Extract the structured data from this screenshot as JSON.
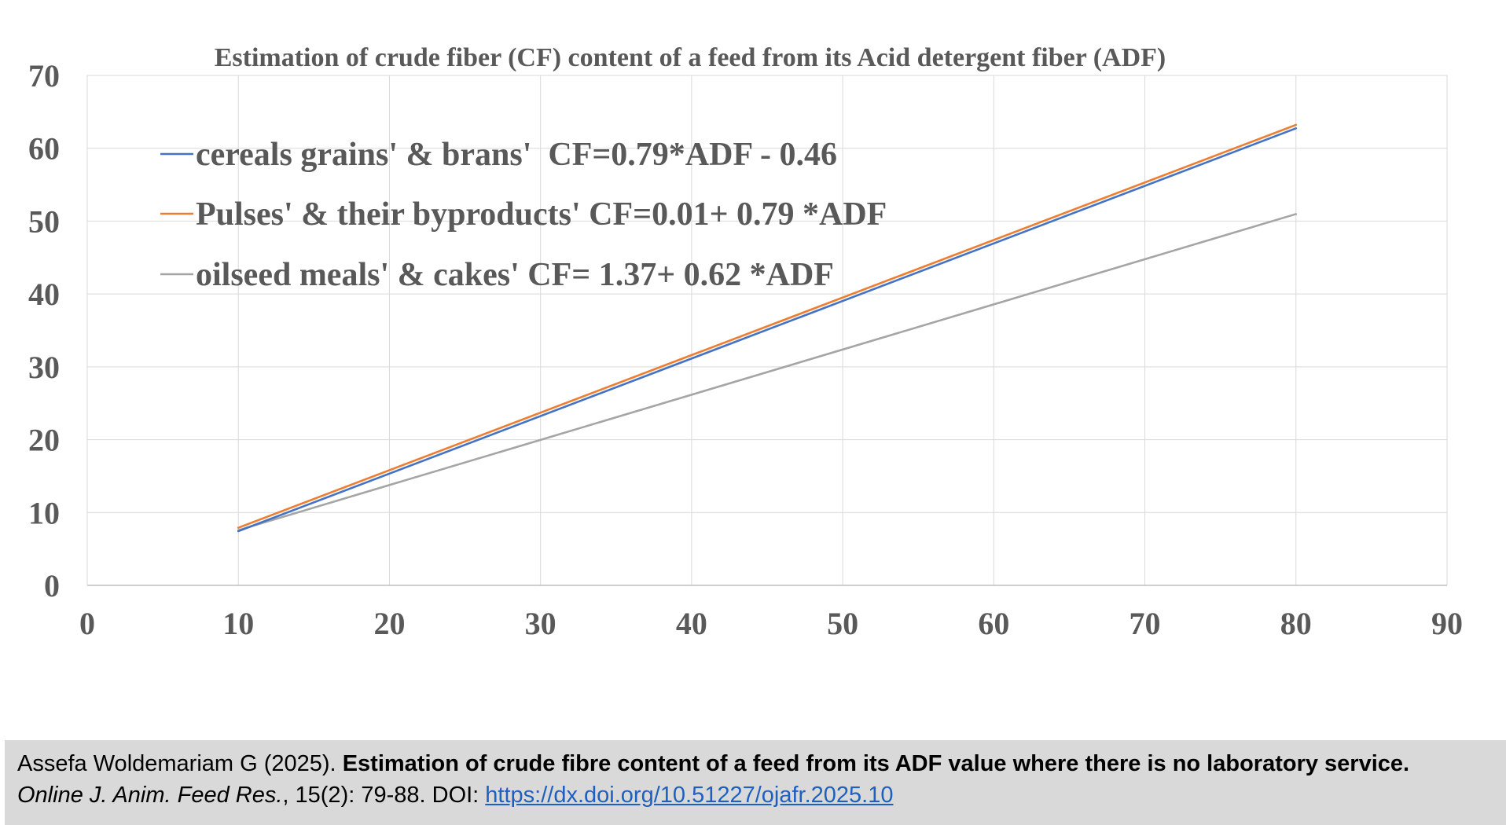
{
  "chart_data": {
    "type": "line",
    "title": "Estimation of crude fiber (CF) content of a feed from its Acid detergent fiber (ADF)",
    "xlabel": "",
    "ylabel": "",
    "xlim": [
      0,
      90
    ],
    "ylim": [
      0,
      70
    ],
    "x_ticks": [
      0,
      10,
      20,
      30,
      40,
      50,
      60,
      70,
      80,
      90
    ],
    "y_ticks": [
      0,
      10,
      20,
      30,
      40,
      50,
      60,
      70
    ],
    "grid": true,
    "legend_position": "top-left",
    "x": [
      10,
      80
    ],
    "series": [
      {
        "name": "cereals grains' & brans'  CF=0.79*ADF - 0.46",
        "color": "#4472c4",
        "values": [
          7.44,
          62.74
        ]
      },
      {
        "name": "Pulses' & their byproducts' CF=0.01+ 0.79 *ADF",
        "color": "#ed7d31",
        "values": [
          7.91,
          63.21
        ]
      },
      {
        "name": "oilseed meals' & cakes' CF= 1.37+ 0.62 *ADF",
        "color": "#a5a5a5",
        "values": [
          7.57,
          50.97
        ]
      }
    ]
  },
  "footer": {
    "author": "Assefa Woldemariam G (2025). ",
    "article_title": "Estimation of crude fibre content of a feed from its ADF value where there is no laboratory service.",
    "journal": "Online J. Anim. Feed Res.",
    "citation": ", 15(2): 79-88. DOI: ",
    "doi_url": "https://dx.doi.org/10.51227/ojafr.2025.10"
  }
}
